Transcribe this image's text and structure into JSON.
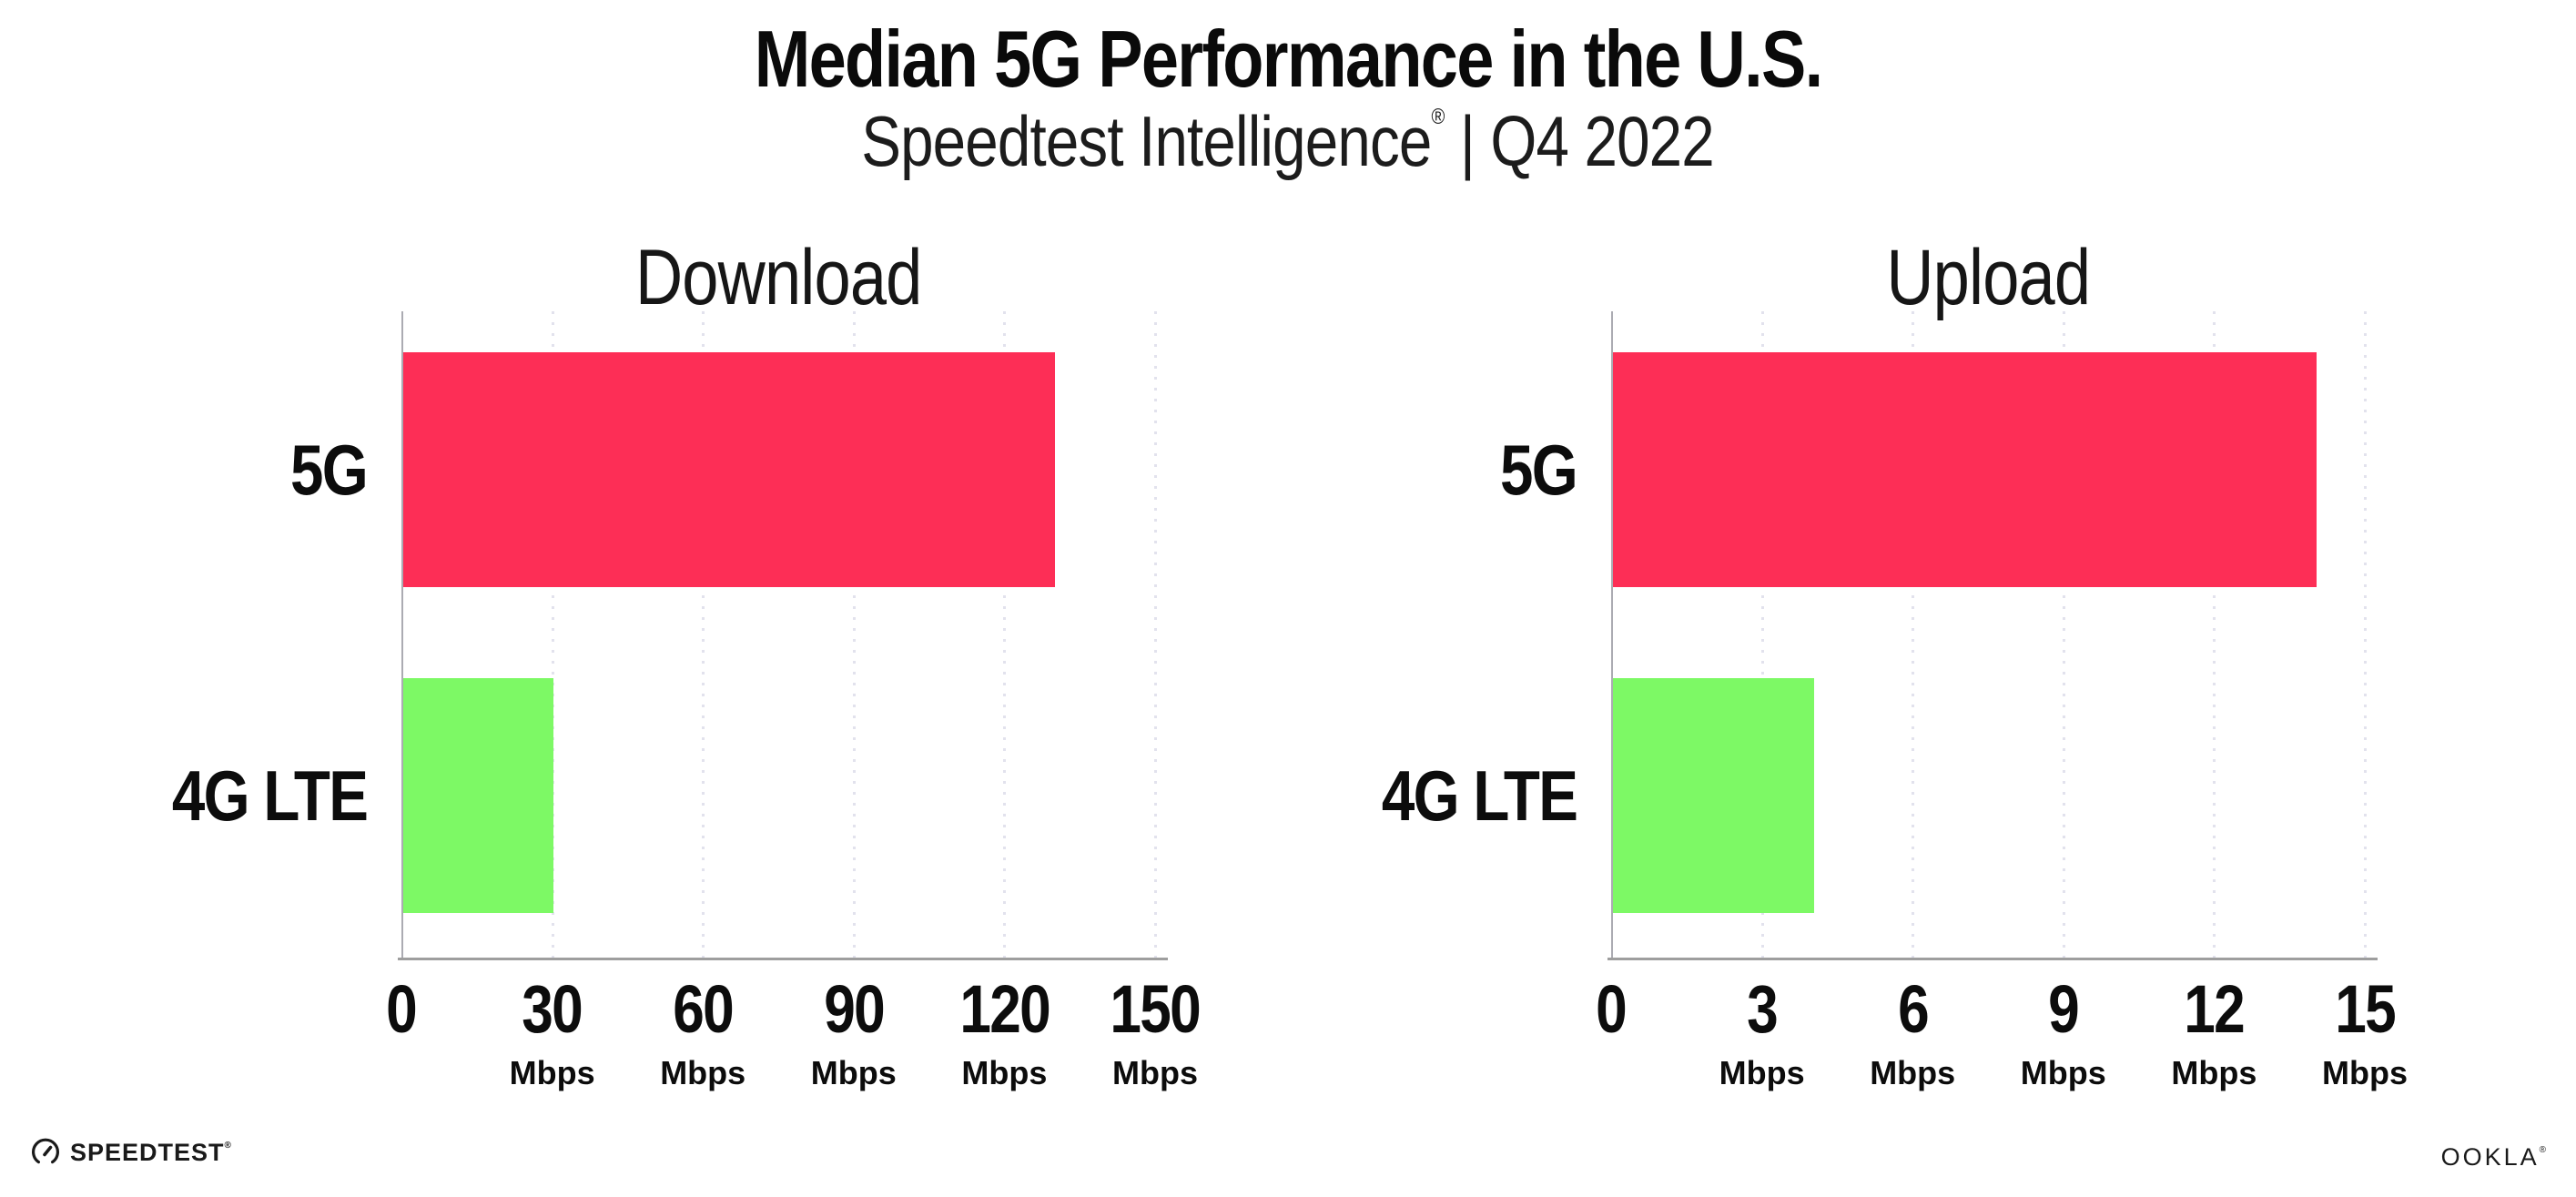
{
  "header": {
    "title": "Median 5G Performance in the U.S.",
    "subtitle_brand": "Speedtest Intelligence",
    "subtitle_mark": "®",
    "subtitle_rest": " | Q4 2022"
  },
  "footer": {
    "speedtest_label": "SPEEDTEST",
    "speedtest_mark": "®",
    "ookla_label": "OOKLA",
    "ookla_mark": "®"
  },
  "colors": {
    "bar_5g": "#FD2E56",
    "bar_4g_lte": "#7DF965",
    "axis": "#9E9E9E",
    "axis_left": "#ABABB2",
    "gridline": "#E2E2ED",
    "text": "#111111"
  },
  "chart_data": [
    {
      "type": "bar",
      "orientation": "horizontal",
      "title": "Download",
      "categories": [
        "5G",
        "4G LTE"
      ],
      "values": [
        129.8,
        29.9
      ],
      "unit": "Mbps",
      "xlim": [
        0,
        150
      ],
      "ticks": [
        0,
        30,
        60,
        90,
        120,
        150
      ],
      "bar_colors": [
        "#FD2E56",
        "#7DF965"
      ],
      "grid": "dotted-vertical",
      "legend": "none"
    },
    {
      "type": "bar",
      "orientation": "horizontal",
      "title": "Upload",
      "categories": [
        "5G",
        "4G LTE"
      ],
      "values": [
        14.0,
        4.0
      ],
      "unit": "Mbps",
      "xlim": [
        0,
        15
      ],
      "ticks": [
        0,
        3,
        6,
        9,
        12,
        15
      ],
      "bar_colors": [
        "#FD2E56",
        "#7DF965"
      ],
      "grid": "dotted-vertical",
      "legend": "none"
    }
  ]
}
